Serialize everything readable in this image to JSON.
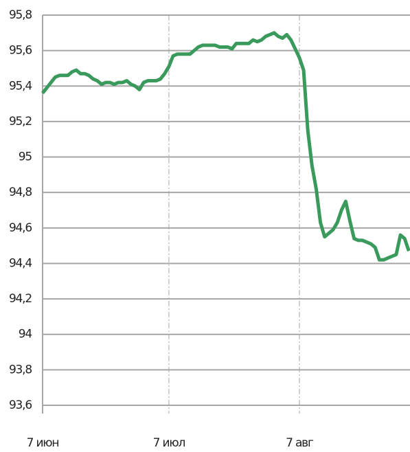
{
  "chart_data": {
    "type": "line",
    "categories": [
      "7 июн",
      null,
      null,
      null,
      null,
      null,
      null,
      null,
      null,
      null,
      null,
      null,
      null,
      null,
      null,
      null,
      null,
      null,
      null,
      null,
      null,
      null,
      null,
      null,
      null,
      null,
      null,
      null,
      null,
      null,
      "7 июл",
      null,
      null,
      null,
      null,
      null,
      null,
      null,
      null,
      null,
      null,
      null,
      null,
      null,
      null,
      null,
      null,
      null,
      null,
      null,
      null,
      null,
      null,
      null,
      null,
      null,
      null,
      null,
      null,
      null,
      null,
      "7 авг",
      null,
      null,
      null,
      null,
      null,
      null,
      null,
      null,
      null,
      null,
      null,
      null,
      null,
      null,
      null,
      null,
      null,
      null,
      null,
      null,
      null,
      null,
      null,
      null,
      null,
      null
    ],
    "series": [
      {
        "name": null,
        "color": "#3a9a5c",
        "values": [
          95.36,
          95.39,
          95.42,
          95.45,
          95.46,
          95.46,
          95.46,
          95.48,
          95.49,
          95.47,
          95.47,
          95.46,
          95.44,
          95.43,
          95.41,
          95.42,
          95.42,
          95.41,
          95.42,
          95.42,
          95.43,
          95.41,
          95.4,
          95.38,
          95.42,
          95.43,
          95.43,
          95.43,
          95.44,
          95.47,
          95.51,
          95.57,
          95.58,
          95.58,
          95.58,
          95.58,
          95.6,
          95.62,
          95.63,
          95.63,
          95.63,
          95.63,
          95.62,
          95.62,
          95.62,
          95.61,
          95.64,
          95.64,
          95.64,
          95.64,
          95.66,
          95.65,
          95.66,
          95.68,
          95.69,
          95.7,
          95.68,
          95.67,
          95.69,
          95.66,
          95.61,
          95.56,
          95.49,
          95.15,
          94.95,
          94.82,
          94.63,
          94.55,
          94.57,
          94.59,
          94.63,
          94.7,
          94.75,
          94.64,
          94.54,
          94.53,
          94.53,
          94.52,
          94.51,
          94.49,
          94.42,
          94.42,
          94.43,
          94.44,
          94.45,
          94.56,
          94.54,
          94.47
        ]
      }
    ],
    "ylim": [
      93.6,
      95.8
    ],
    "yticks": [
      {
        "value": 93.6,
        "label": "93,6"
      },
      {
        "value": 93.8,
        "label": "93,8"
      },
      94,
      {
        "value": 94.2,
        "label": "94,2"
      },
      {
        "value": 94.4,
        "label": "94,4"
      },
      {
        "value": 94.6,
        "label": "94,6"
      },
      {
        "value": 94.8,
        "label": "94,8"
      },
      95,
      {
        "value": 95.2,
        "label": "95,2"
      },
      {
        "value": 95.4,
        "label": "95,4"
      },
      {
        "value": 95.6,
        "label": "95,6"
      },
      {
        "value": 95.8,
        "label": "95,8"
      }
    ],
    "grid": true
  }
}
